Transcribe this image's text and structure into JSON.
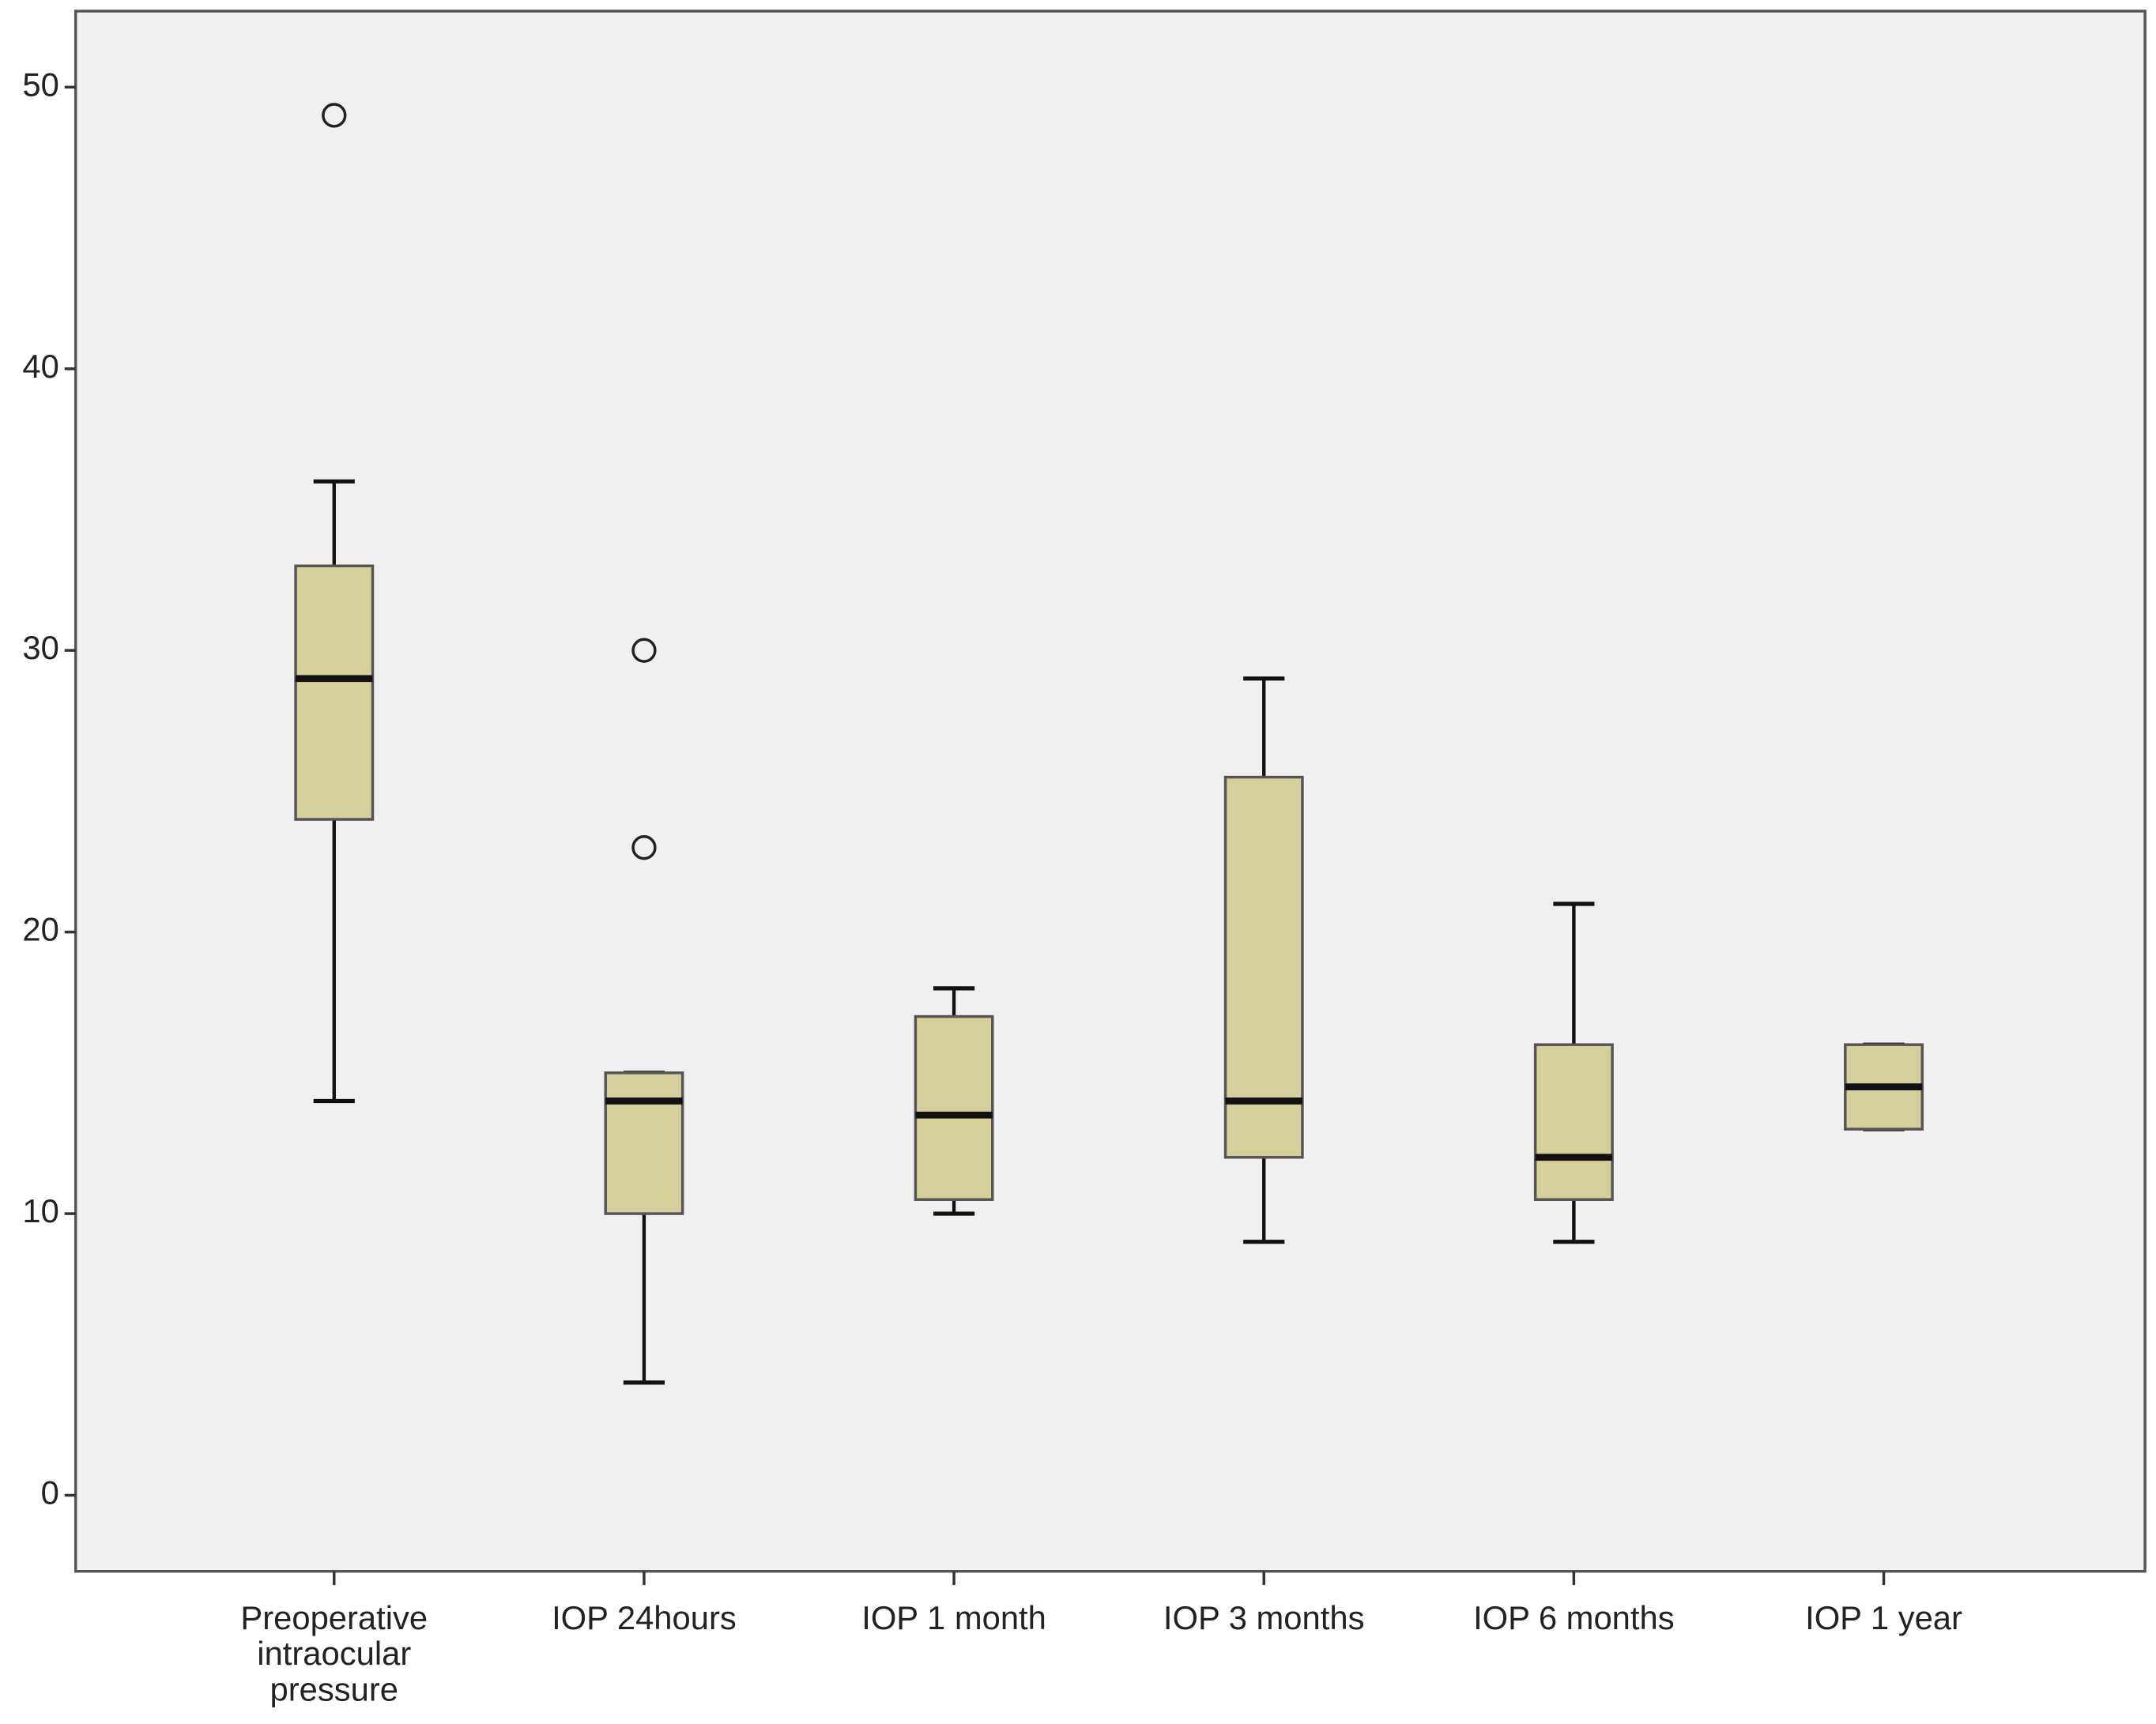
{
  "chart_data": {
    "type": "box",
    "categories": [
      "Preoperative intraocular pressure",
      "IOP 24hours",
      "IOP 1 month",
      "IOP 3 months",
      "IOP 6 months",
      "IOP 1 year"
    ],
    "boxes": [
      {
        "min": 14,
        "q1": 24,
        "median": 29,
        "q3": 33,
        "max": 36,
        "outliers": [
          49
        ]
      },
      {
        "min": 4,
        "q1": 10,
        "median": 14,
        "q3": 15,
        "max": 15,
        "outliers": [
          30,
          23
        ]
      },
      {
        "min": 10,
        "q1": 10.5,
        "median": 13.5,
        "q3": 17,
        "max": 18,
        "outliers": []
      },
      {
        "min": 9,
        "q1": 12,
        "median": 14,
        "q3": 25.5,
        "max": 29,
        "outliers": []
      },
      {
        "min": 9,
        "q1": 10.5,
        "median": 12,
        "q3": 16,
        "max": 21,
        "outliers": []
      },
      {
        "min": 13,
        "q1": 13,
        "median": 14.5,
        "q3": 16,
        "max": 16,
        "outliers": []
      }
    ],
    "color": "#d4cf9b",
    "background": "#f0f0f0",
    "ylim": [
      -2.7,
      52.7
    ],
    "yticks": [
      0,
      10,
      20,
      30,
      40,
      50
    ],
    "grid": false
  }
}
